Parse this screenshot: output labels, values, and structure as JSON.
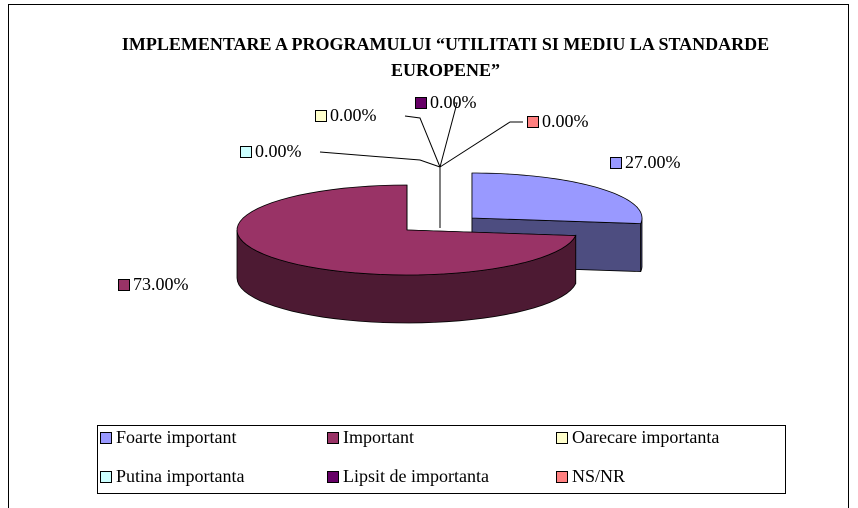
{
  "chart_data": {
    "type": "pie",
    "title": "IMPLEMENTARE A PROGRAMULUI “UTILITATI SI MEDIU LA STANDARDE EUROPENE”",
    "categories": [
      "Foarte important",
      "Important",
      "Oarecare importanta",
      "Putina importanta",
      "Lipsit de importanta",
      "NS/NR"
    ],
    "values": [
      27,
      73,
      0,
      0,
      0,
      0
    ],
    "value_labels": [
      "27.00%",
      "73.00%",
      "0.00%",
      "0.00%",
      "0.00%",
      "0.00%"
    ],
    "colors": [
      "#9999ff",
      "#993366",
      "#ffffcc",
      "#ccffff",
      "#660066",
      "#ff8080"
    ],
    "legend": "bottom"
  }
}
